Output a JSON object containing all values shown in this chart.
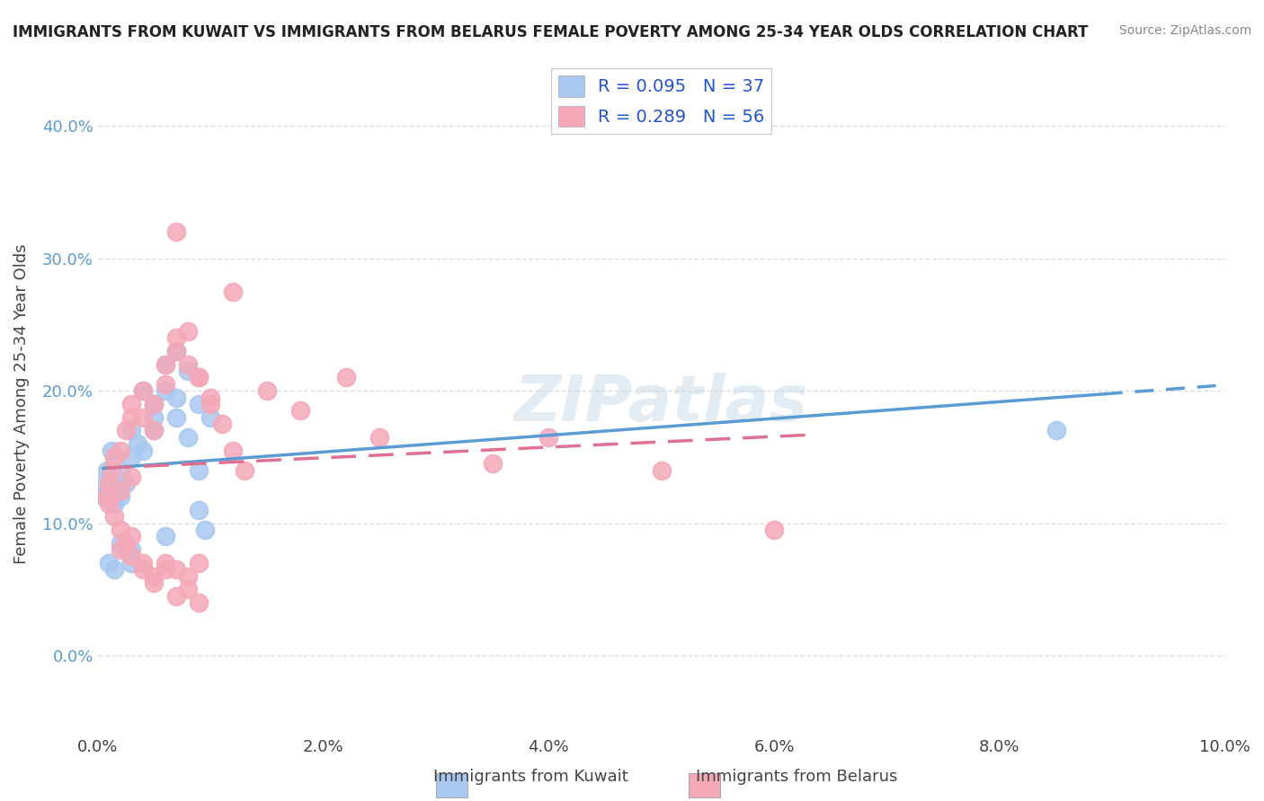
{
  "title": "IMMIGRANTS FROM KUWAIT VS IMMIGRANTS FROM BELARUS FEMALE POVERTY AMONG 25-34 YEAR OLDS CORRELATION CHART",
  "source": "Source: ZipAtlas.com",
  "xlabel": "",
  "ylabel": "Female Poverty Among 25-34 Year Olds",
  "xlim": [
    0.0,
    0.1
  ],
  "ylim": [
    -0.06,
    0.44
  ],
  "xticks": [
    0.0,
    0.02,
    0.04,
    0.06,
    0.08,
    0.1
  ],
  "xticklabels": [
    "0.0%",
    "2.0%",
    "4.0%",
    "6.0%",
    "8.0%",
    "10.0%"
  ],
  "yticks": [
    0.0,
    0.1,
    0.2,
    0.3,
    0.4
  ],
  "yticklabels": [
    "0.0%",
    "10.0%",
    "20.0%",
    "30.0%",
    "40.0%"
  ],
  "legend_labels": [
    "Immigrants from Kuwait",
    "Immigrants from Belarus"
  ],
  "legend_R": [
    0.095,
    0.289
  ],
  "legend_N": [
    37,
    56
  ],
  "kuwait_color": "#a8c8f0",
  "belarus_color": "#f4a8b8",
  "kuwait_line_color": "#5b9bd5",
  "belarus_line_color": "#e07090",
  "watermark": "ZIPatlas",
  "watermark_color": "#c8d8e8",
  "background_color": "#ffffff",
  "kuwait_x": [
    0.0012,
    0.0008,
    0.0005,
    0.001,
    0.0015,
    0.0025,
    0.002,
    0.003,
    0.0035,
    0.003,
    0.004,
    0.005,
    0.004,
    0.005,
    0.006,
    0.005,
    0.007,
    0.006,
    0.007,
    0.008,
    0.007,
    0.009,
    0.008,
    0.009,
    0.01,
    0.0095,
    0.003,
    0.002,
    0.0015,
    0.001,
    0.0005,
    0.006,
    0.009,
    0.085,
    0.002,
    0.0025,
    0.003
  ],
  "kuwait_y": [
    0.155,
    0.14,
    0.13,
    0.12,
    0.115,
    0.13,
    0.14,
    0.15,
    0.16,
    0.17,
    0.155,
    0.18,
    0.2,
    0.19,
    0.2,
    0.17,
    0.18,
    0.22,
    0.195,
    0.215,
    0.23,
    0.19,
    0.165,
    0.14,
    0.18,
    0.095,
    0.08,
    0.085,
    0.065,
    0.07,
    0.12,
    0.09,
    0.11,
    0.17,
    0.12,
    0.08,
    0.07
  ],
  "belarus_x": [
    0.001,
    0.0008,
    0.0012,
    0.0015,
    0.002,
    0.0025,
    0.003,
    0.003,
    0.004,
    0.004,
    0.005,
    0.005,
    0.006,
    0.006,
    0.007,
    0.007,
    0.008,
    0.009,
    0.01,
    0.012,
    0.015,
    0.018,
    0.022,
    0.025,
    0.003,
    0.002,
    0.001,
    0.0015,
    0.002,
    0.0025,
    0.003,
    0.004,
    0.005,
    0.006,
    0.007,
    0.008,
    0.009,
    0.035,
    0.04,
    0.05,
    0.06,
    0.007,
    0.008,
    0.009,
    0.01,
    0.011,
    0.012,
    0.013,
    0.002,
    0.003,
    0.004,
    0.005,
    0.006,
    0.007,
    0.008,
    0.009
  ],
  "belarus_y": [
    0.13,
    0.12,
    0.14,
    0.15,
    0.155,
    0.17,
    0.18,
    0.19,
    0.18,
    0.2,
    0.19,
    0.17,
    0.205,
    0.22,
    0.23,
    0.24,
    0.22,
    0.21,
    0.195,
    0.275,
    0.2,
    0.185,
    0.21,
    0.165,
    0.135,
    0.125,
    0.115,
    0.105,
    0.095,
    0.085,
    0.075,
    0.065,
    0.055,
    0.07,
    0.065,
    0.06,
    0.07,
    0.145,
    0.165,
    0.14,
    0.095,
    0.32,
    0.245,
    0.21,
    0.19,
    0.175,
    0.155,
    0.14,
    0.08,
    0.09,
    0.07,
    0.06,
    0.065,
    0.045,
    0.05,
    0.04
  ]
}
